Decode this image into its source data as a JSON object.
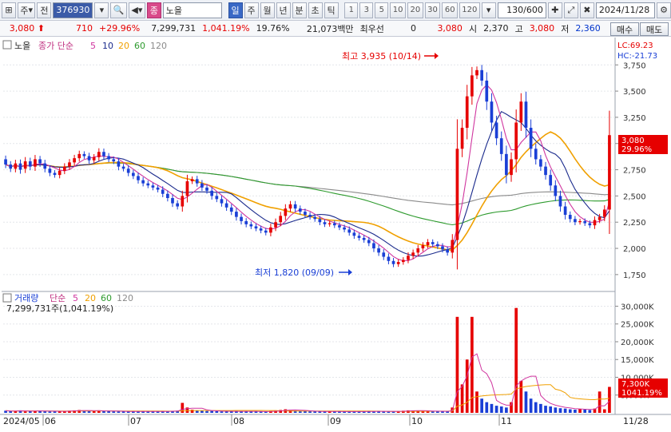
{
  "toolbar": {
    "market_label": "주",
    "type_label": "전",
    "stock_code": "376930",
    "stock_name": "노을",
    "name_tag": "종",
    "periods": [
      "일",
      "주",
      "월",
      "년",
      "분",
      "초",
      "틱"
    ],
    "active_period": "일",
    "intervals": [
      "1",
      "3",
      "5",
      "10",
      "20",
      "30",
      "60",
      "120"
    ],
    "count": "130/600",
    "date": "2024/11/28"
  },
  "infobar": {
    "price": "3,080",
    "change": "710",
    "change_pct": "+29.96%",
    "volume": "7,299,731",
    "volume_ratio": "1,041.19%",
    "turnover": "19.76%",
    "amount": "21,073백만",
    "pref_label": "최우선",
    "pref_value": "0",
    "ask": "3,080",
    "open_label": "시",
    "open": "2,370",
    "high_label": "고",
    "high": "3,080",
    "low_label": "저",
    "low": "2,360",
    "buy": "매수",
    "sell": "매도"
  },
  "price_panel": {
    "stock_tag": "노을",
    "indicator": "종가 단순",
    "ma_periods": [
      "5",
      "10",
      "20",
      "60",
      "120"
    ],
    "lc": "LC:69.23",
    "hc": "HC:-21.73",
    "max_annotation": "최고 3,935 (10/14)",
    "min_annotation": "최저 1,820 (09/09)",
    "current_price": "3,080",
    "current_pct": "29.96%"
  },
  "volume_panel": {
    "title": "거래량",
    "indicator": "단순",
    "ma_periods": [
      "5",
      "20",
      "60",
      "120"
    ],
    "current_volume": "7,299,731주(1,041.19%)",
    "current_label": "7,300K",
    "current_pct": "1041.19%"
  },
  "x_axis": [
    "2024/05",
    "06",
    "07",
    "08",
    "09",
    "10",
    "11",
    "11/28"
  ],
  "chart_data": {
    "type": "candlestick",
    "price_ticks": [
      "3,750",
      "3,500",
      "3,250",
      "3,000",
      "2,750",
      "2,500",
      "2,250",
      "2,000",
      "1,750"
    ],
    "volume_ticks": [
      "30,000K",
      "25,000K",
      "20,000K",
      "15,000K",
      "10,000K",
      "5,000K"
    ],
    "ylim": [
      1650,
      3950
    ],
    "volume_ylim": [
      0,
      31000000
    ],
    "colors": {
      "up": "#e60000",
      "down": "#1a3fd6",
      "ma5": "#d0359f",
      "ma10": "#1a2a8c",
      "ma20": "#f0a000",
      "ma60": "#2d9a2d",
      "ma120": "#8a8a8a"
    },
    "close": [
      2800,
      2760,
      2810,
      2750,
      2830,
      2780,
      2850,
      2810,
      2760,
      2720,
      2700,
      2740,
      2780,
      2820,
      2860,
      2900,
      2880,
      2840,
      2870,
      2920,
      2880,
      2850,
      2830,
      2780,
      2760,
      2720,
      2690,
      2650,
      2620,
      2600,
      2580,
      2560,
      2520,
      2480,
      2430,
      2400,
      2500,
      2640,
      2660,
      2620,
      2580,
      2550,
      2500,
      2470,
      2430,
      2390,
      2350,
      2300,
      2260,
      2230,
      2210,
      2190,
      2170,
      2150,
      2200,
      2250,
      2310,
      2380,
      2420,
      2380,
      2350,
      2320,
      2300,
      2280,
      2250,
      2230,
      2240,
      2220,
      2200,
      2180,
      2150,
      2120,
      2100,
      2080,
      2050,
      2000,
      1960,
      1920,
      1880,
      1850,
      1870,
      1890,
      1930,
      1960,
      2000,
      2030,
      2060,
      2040,
      2020,
      1990,
      1960,
      2080,
      2950,
      3150,
      3450,
      3650,
      3700,
      3600,
      3400,
      3200,
      3050,
      2900,
      2700,
      2850,
      3200,
      3400,
      3150,
      2950,
      2850,
      2780,
      2700,
      2600,
      2500,
      2400,
      2320,
      2280,
      2250,
      2260,
      2240,
      2220,
      2270,
      2300,
      2370,
      3080
    ],
    "open": [
      2850,
      2800,
      2760,
      2810,
      2760,
      2830,
      2780,
      2850,
      2810,
      2760,
      2720,
      2700,
      2740,
      2780,
      2820,
      2860,
      2900,
      2880,
      2840,
      2870,
      2920,
      2880,
      2850,
      2830,
      2780,
      2760,
      2720,
      2690,
      2650,
      2620,
      2600,
      2580,
      2560,
      2520,
      2480,
      2430,
      2400,
      2500,
      2640,
      2660,
      2620,
      2580,
      2550,
      2500,
      2470,
      2430,
      2390,
      2350,
      2300,
      2260,
      2230,
      2210,
      2190,
      2170,
      2150,
      2200,
      2250,
      2310,
      2380,
      2420,
      2380,
      2350,
      2320,
      2300,
      2280,
      2250,
      2230,
      2240,
      2220,
      2200,
      2180,
      2150,
      2120,
      2100,
      2080,
      2050,
      2000,
      1960,
      1920,
      1880,
      1850,
      1870,
      1890,
      1930,
      1960,
      2000,
      2030,
      2060,
      2040,
      2020,
      1990,
      1960,
      2080,
      2950,
      3150,
      3450,
      3650,
      3700,
      3600,
      3400,
      3200,
      3050,
      2900,
      2700,
      2850,
      3200,
      3400,
      3150,
      2950,
      2850,
      2780,
      2700,
      2600,
      2500,
      2400,
      2320,
      2280,
      2250,
      2260,
      2240,
      2220,
      2270,
      2300,
      2370
    ],
    "volume": [
      600000,
      500000,
      450000,
      700000,
      400000,
      550000,
      500000,
      650000,
      420000,
      380000,
      400000,
      450000,
      520000,
      600000,
      700000,
      800000,
      650000,
      500000,
      450000,
      700000,
      550000,
      480000,
      420000,
      400000,
      380000,
      350000,
      420000,
      400000,
      380000,
      350000,
      360000,
      400000,
      450000,
      500000,
      550000,
      600000,
      2800000,
      1500000,
      900000,
      700000,
      600000,
      500000,
      550000,
      450000,
      400000,
      380000,
      420000,
      500000,
      450000,
      400000,
      380000,
      350000,
      330000,
      320000,
      500000,
      700000,
      800000,
      1000000,
      900000,
      600000,
      500000,
      450000,
      420000,
      400000,
      380000,
      350000,
      400000,
      380000,
      360000,
      340000,
      320000,
      350000,
      380000,
      400000,
      420000,
      500000,
      450000,
      400000,
      380000,
      420000,
      500000,
      600000,
      700000,
      650000,
      550000,
      500000,
      480000,
      450000,
      420000,
      400000,
      380000,
      1500000,
      27000000,
      8000000,
      15000000,
      27000000,
      6000000,
      4000000,
      3000000,
      2500000,
      2000000,
      1800000,
      1500000,
      3000000,
      29500000,
      9000000,
      6000000,
      4000000,
      3000000,
      2500000,
      2000000,
      1800000,
      1500000,
      1300000,
      1200000,
      1000000,
      900000,
      1100000,
      900000,
      800000,
      1200000,
      6000000,
      1000000,
      7300000
    ]
  }
}
